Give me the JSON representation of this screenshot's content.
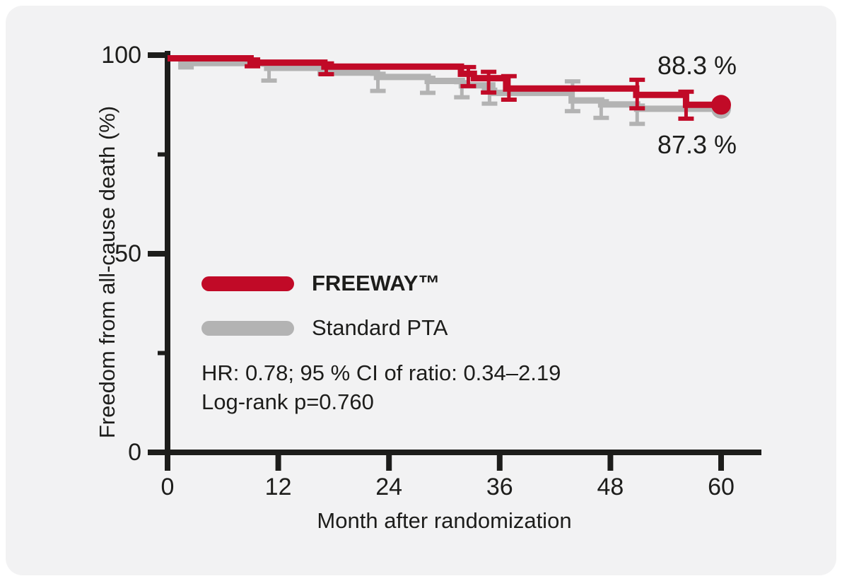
{
  "figure": {
    "background": "#ffffff",
    "card_background": "#f2f2f3"
  },
  "chart_data": {
    "type": "line",
    "subtype": "kaplan-meier-step",
    "title": "",
    "xlabel": "Month after randomization",
    "ylabel": "Freedom from all-cause death (%)",
    "xlim": [
      0,
      64
    ],
    "ylim": [
      0,
      100
    ],
    "x_ticks": [
      0,
      12,
      24,
      36,
      48,
      60
    ],
    "y_ticks_major": [
      0,
      50,
      100
    ],
    "y_ticks_minor": [
      25,
      75
    ],
    "grid": false,
    "legend_position": "inside-left",
    "colors": {
      "freeway": "#c10a27",
      "standard_pta": "#b3b3b3",
      "axis": "#1d1d1b",
      "text": "#1d1d1b"
    },
    "series": [
      {
        "name": "FREEWAY™",
        "color_key": "freeway",
        "end_label": "88.3 %",
        "final_value": 88.3,
        "steps": [
          [
            0,
            100
          ],
          [
            9,
            98.9
          ],
          [
            17,
            97.9
          ],
          [
            31.8,
            96.1
          ],
          [
            33.2,
            95.0
          ],
          [
            36.7,
            92.4
          ],
          [
            50.8,
            90.8
          ],
          [
            56.2,
            88.3
          ],
          [
            60,
            88.3
          ]
        ],
        "error_bars": [
          [
            9.2,
            98.9,
            97.2
          ],
          [
            17.2,
            97.9,
            95.2
          ],
          [
            32.6,
            97.0,
            92.2
          ],
          [
            34.8,
            95.8,
            90.6
          ],
          [
            37.0,
            94.7,
            88.8
          ],
          [
            50.9,
            93.8,
            86.6
          ],
          [
            56.2,
            90.8,
            84.0
          ]
        ],
        "end_marker": [
          60,
          88.3
        ]
      },
      {
        "name": "Standard PTA",
        "color_key": "standard_pta",
        "end_label": "87.3 %",
        "final_value": 87.3,
        "steps": [
          [
            0,
            100
          ],
          [
            1.5,
            98.8
          ],
          [
            10.8,
            97.6
          ],
          [
            16.6,
            96.4
          ],
          [
            22.7,
            95.3
          ],
          [
            28.2,
            94.3
          ],
          [
            31.9,
            93.2
          ],
          [
            35.2,
            91.3
          ],
          [
            43.8,
            89.4
          ],
          [
            47,
            88.4
          ],
          [
            50.9,
            87.3
          ],
          [
            60,
            87.3
          ]
        ],
        "error_bars": [
          [
            2.0,
            98.8,
            96.9
          ],
          [
            11.0,
            97.6,
            93.6
          ],
          [
            22.8,
            95.3,
            91.0
          ],
          [
            28.2,
            94.3,
            90.5
          ],
          [
            31.9,
            93.2,
            89.4
          ],
          [
            34.9,
            91.3,
            87.8
          ],
          [
            43.9,
            93.4,
            85.9
          ],
          [
            47.0,
            88.4,
            84.2
          ],
          [
            50.9,
            87.3,
            82.7
          ]
        ],
        "end_marker": [
          60,
          87.3
        ]
      }
    ],
    "stats": {
      "line1": "HR: 0.78; 95 % CI of ratio: 0.34–2.19",
      "line2": "Log-rank p=0.760"
    }
  },
  "legend": {
    "items": [
      {
        "label": "FREEWAY™",
        "color_key": "freeway",
        "bold": true
      },
      {
        "label": "Standard PTA",
        "color_key": "standard_pta",
        "bold": false
      }
    ]
  }
}
